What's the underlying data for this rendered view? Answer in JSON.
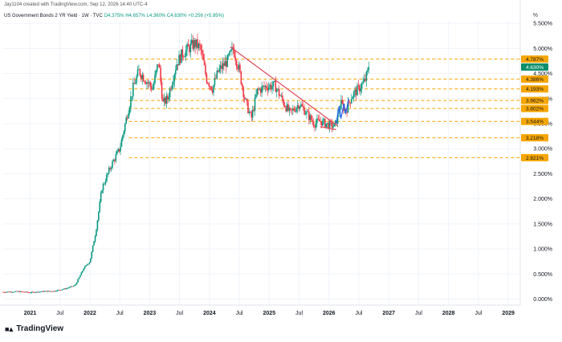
{
  "header": {
    "credit": "Jay1104 created with TradingView.com, Sep 12, 2026 14:40 UTC-4",
    "symbol": "US Government Bonds 2 YR Yield · 1W · TVC",
    "open": "O4.375%",
    "high": "H4.657%",
    "low": "L4.360%",
    "close": "C4.630%",
    "change": "+0.256 (+5.85%)"
  },
  "axis": {
    "unit_symbol": "%"
  },
  "footer": {
    "logo": "TradingView"
  },
  "colors": {
    "up": "#089981",
    "down": "#f23645",
    "level": "#f7a600",
    "trendline": "#e0455a",
    "last_price": "#0b8f6c",
    "pattern": "#2962ff"
  },
  "chart_data": {
    "type": "candlestick",
    "title": "US Government Bonds 2 YR Yield · 1W · TVC",
    "ylim": [
      -0.12,
      5.55
    ],
    "y_ticks": [
      "0.000%",
      "0.500%",
      "1.000%",
      "1.500%",
      "2.000%",
      "2.500%",
      "3.000%",
      "3.500%",
      "4.000%",
      "4.500%",
      "5.000%",
      "5.500%"
    ],
    "y_tick_values": [
      0,
      0.5,
      1,
      1.5,
      2,
      2.5,
      3,
      3.5,
      4,
      4.5,
      5,
      5.5
    ],
    "x_ticks": [
      "2021",
      "Jul",
      "2022",
      "Jul",
      "2023",
      "Jul",
      "2024",
      "Jul",
      "2025",
      "Jul",
      "2026",
      "Jul",
      "2027",
      "Jul",
      "2028",
      "Jul",
      "2029"
    ],
    "x_tick_values": [
      2021.0,
      2021.5,
      2022.0,
      2022.5,
      2023.0,
      2023.5,
      2024.0,
      2024.5,
      2025.0,
      2025.5,
      2026.0,
      2026.5,
      2027.0,
      2027.5,
      2028.0,
      2028.5,
      2029.0
    ],
    "xlim": [
      2020.55,
      2029.2
    ],
    "path_points": [
      [
        2020.55,
        0.14
      ],
      [
        2020.8,
        0.15
      ],
      [
        2021.0,
        0.13
      ],
      [
        2021.2,
        0.15
      ],
      [
        2021.4,
        0.16
      ],
      [
        2021.6,
        0.21
      ],
      [
        2021.75,
        0.27
      ],
      [
        2021.9,
        0.62
      ],
      [
        2022.0,
        0.75
      ],
      [
        2022.1,
        1.35
      ],
      [
        2022.2,
        2.2
      ],
      [
        2022.35,
        2.65
      ],
      [
        2022.5,
        3.0
      ],
      [
        2022.6,
        3.55
      ],
      [
        2022.72,
        4.2
      ],
      [
        2022.82,
        4.55
      ],
      [
        2022.95,
        4.35
      ],
      [
        2023.05,
        4.2
      ],
      [
        2023.15,
        4.75
      ],
      [
        2023.22,
        3.9
      ],
      [
        2023.3,
        4.0
      ],
      [
        2023.45,
        4.7
      ],
      [
        2023.55,
        4.9
      ],
      [
        2023.75,
        5.1
      ],
      [
        2023.85,
        5.0
      ],
      [
        2023.95,
        4.4
      ],
      [
        2024.05,
        4.2
      ],
      [
        2024.15,
        4.55
      ],
      [
        2024.3,
        4.75
      ],
      [
        2024.4,
        5.0
      ],
      [
        2024.5,
        4.55
      ],
      [
        2024.6,
        3.95
      ],
      [
        2024.7,
        3.6
      ],
      [
        2024.8,
        4.15
      ],
      [
        2024.95,
        4.25
      ],
      [
        2025.1,
        4.25
      ],
      [
        2025.25,
        3.9
      ],
      [
        2025.35,
        3.7
      ],
      [
        2025.5,
        3.9
      ],
      [
        2025.6,
        3.75
      ],
      [
        2025.75,
        3.5
      ],
      [
        2025.85,
        3.55
      ],
      [
        2026.0,
        3.47
      ],
      [
        2026.1,
        3.45
      ],
      [
        2026.2,
        3.9
      ],
      [
        2026.28,
        3.75
      ],
      [
        2026.38,
        4.05
      ],
      [
        2026.5,
        4.2
      ],
      [
        2026.6,
        4.35
      ],
      [
        2026.68,
        4.63
      ]
    ],
    "levels": [
      4.787,
      4.386,
      4.193,
      3.962,
      3.802,
      3.544,
      3.218,
      2.821
    ],
    "level_labels": [
      "4.787%",
      "4.386%",
      "4.193%",
      "3.962%",
      "3.802%",
      "3.544%",
      "3.218%",
      "2.821%"
    ],
    "last_price": 4.63,
    "last_price_label": "4.630%",
    "trendline": [
      [
        2024.35,
        5.03
      ],
      [
        2026.15,
        3.45
      ]
    ],
    "lower_line": [
      [
        2025.85,
        3.44
      ],
      [
        2026.12,
        3.38
      ]
    ]
  }
}
